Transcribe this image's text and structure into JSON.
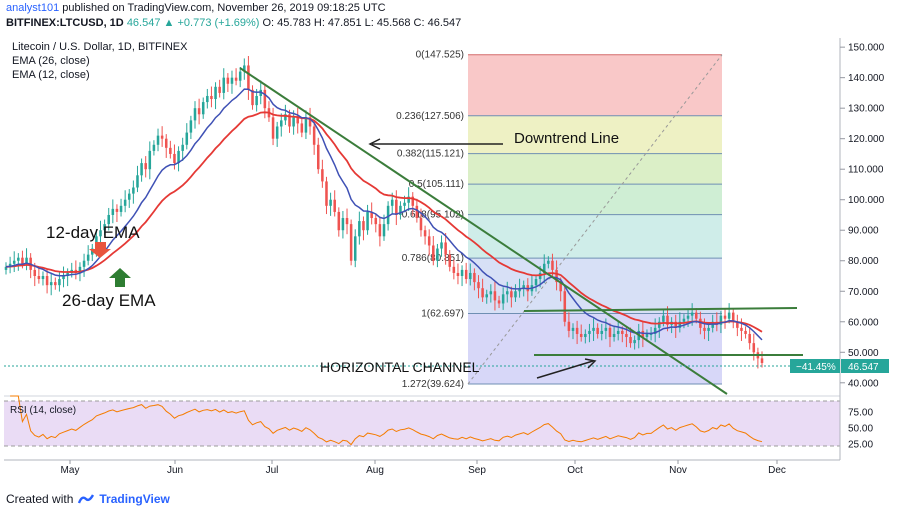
{
  "header": {
    "author": "analyst101",
    "published_text": "published on TradingView.com, November 26, 2019 09:18:25 UTC",
    "symbol": "BITFINEX:LTCUSD, 1D",
    "close_value": "46.547",
    "change": "+0.773 (+1.69%)",
    "ohlc": "O: 45.783  H: 47.851  L: 45.568  C: 46.547"
  },
  "legend": {
    "title": "Litecoin / U.S. Dollar, 1D, BITFINEX",
    "ema26": "EMA (26, close)",
    "ema12": "EMA (12, close)"
  },
  "annotations": {
    "ema12_label": "12-day EMA",
    "ema26_label": "26-day EMA",
    "downtrend_label": "Downtrend Line",
    "channel_label": "HORIZONTAL CHANNEL"
  },
  "price_badges": {
    "pct": "−41.45%",
    "last": "46.547"
  },
  "rsi": {
    "label": "RSI (14, close)",
    "ticks": [
      "75.00",
      "50.00",
      "25.00"
    ]
  },
  "footer": {
    "created_with": "Created with",
    "brand": "TradingView"
  },
  "colors": {
    "up": "#26a69a",
    "down": "#ef5350",
    "ema12": "#3f51b5",
    "ema26": "#e53935",
    "trendline": "#3b7d3b",
    "rsi_line": "#f57c00",
    "rsi_band": "#e1bee7"
  },
  "chart_data": {
    "type": "candlestick",
    "x_ticks": [
      "May",
      "Jun",
      "Jul",
      "Aug",
      "Sep",
      "Oct",
      "Nov",
      "Dec"
    ],
    "y_ticks": [
      40,
      50,
      60,
      70,
      80,
      90,
      100,
      110,
      120,
      130,
      140,
      150
    ],
    "y_tick_labels": [
      "40.000",
      "50.000",
      "60.000",
      "70.000",
      "80.000",
      "90.000",
      "100.000",
      "110.000",
      "120.000",
      "130.000",
      "140.000",
      "150.000"
    ],
    "ylim": [
      36,
      153
    ],
    "fib_levels": [
      {
        "label": "0(147.525)",
        "value": 147.525,
        "color": "#f7b6b6"
      },
      {
        "label": "0.236(127.506)",
        "value": 127.506,
        "color": "#e8ecb0"
      },
      {
        "label": "0.382(115.121)",
        "value": 115.121,
        "color": "#cfeab4"
      },
      {
        "label": "0.5(105.111)",
        "value": 105.111,
        "color": "#bfe8c5"
      },
      {
        "label": "0.618(95.102)",
        "value": 95.102,
        "color": "#bfe7e2"
      },
      {
        "label": "0.786(80.851)",
        "value": 80.851,
        "color": "#c9d5f3"
      },
      {
        "label": "1(62.697)",
        "value": 62.697,
        "color": "#c9c9f5"
      },
      {
        "label": "1.272(39.624)",
        "value": 39.624,
        "color": "#cfe8b4"
      }
    ],
    "daily_close": [
      78,
      79,
      80,
      81,
      79,
      81,
      77,
      75,
      74,
      75,
      72,
      73,
      72,
      74,
      75,
      76,
      77,
      76,
      78,
      80,
      82,
      84,
      88,
      90,
      92,
      95,
      97,
      96,
      98,
      100,
      102,
      104,
      108,
      112,
      110,
      116,
      118,
      121,
      120,
      117,
      115,
      112,
      116,
      118,
      122,
      126,
      130,
      128,
      132,
      134,
      133,
      137,
      135,
      140,
      138,
      140,
      139,
      142,
      144,
      136,
      131,
      134,
      136,
      130,
      127,
      120,
      124,
      126,
      128,
      124,
      127,
      125,
      122,
      127,
      124,
      118,
      110,
      106,
      98,
      100,
      96,
      90,
      94,
      92,
      80,
      88,
      93,
      90,
      96,
      94,
      92,
      88,
      92,
      98,
      100,
      95,
      98,
      99,
      101,
      98,
      94,
      90,
      88,
      85,
      80,
      84,
      86,
      82,
      78,
      76,
      75,
      77,
      74,
      76,
      73,
      71,
      68,
      69,
      70,
      67,
      66,
      69,
      70,
      68,
      70,
      71,
      72,
      70,
      72,
      74,
      76,
      79,
      80,
      77,
      73,
      70,
      60,
      57,
      58,
      56,
      55,
      56,
      57,
      58,
      56,
      57,
      58,
      55,
      56,
      57,
      56,
      55,
      53,
      54,
      57,
      55,
      56,
      56,
      58,
      60,
      62,
      59,
      60,
      58,
      60,
      61,
      62,
      63,
      61,
      58,
      57,
      58,
      60,
      59,
      62,
      61,
      63,
      60,
      58,
      57,
      56,
      53,
      50,
      48,
      46.5
    ]
  }
}
